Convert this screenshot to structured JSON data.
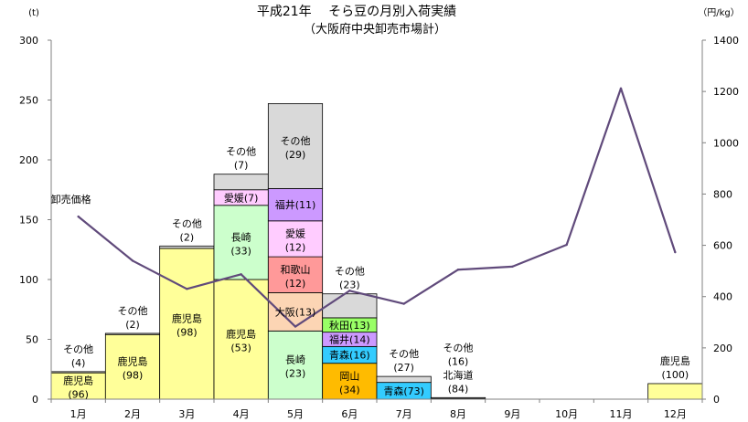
{
  "chart_data": {
    "type": "bar",
    "title": "平成21年　 そら豆の月別入荷実績",
    "subtitle": "（大阪府中央卸売市場計）",
    "left_unit": "(t)",
    "right_unit": "（円/kg）",
    "y_ticks": [
      "0",
      "50",
      "100",
      "150",
      "200",
      "250",
      "300"
    ],
    "y2_ticks": [
      "0",
      "200",
      "400",
      "600",
      "800",
      "1000",
      "1200",
      "1400"
    ],
    "ylim": [
      0,
      300
    ],
    "y2lim": [
      0,
      1400
    ],
    "categories": [
      "1月",
      "2月",
      "3月",
      "4月",
      "5月",
      "6月",
      "7月",
      "8月",
      "9月",
      "10月",
      "11月",
      "12月"
    ],
    "colors": {
      "鹿児島": "#ffff99",
      "長崎": "#ccffcc",
      "愛媛": "#ffccff",
      "大阪": "#fcd5b4",
      "和歌山": "#ff9999",
      "福井": "#cc99ff",
      "秋田": "#99ff66",
      "青森": "#33ccff",
      "岡山": "#ffbb00",
      "北海道": "#ffffff",
      "その他": "#d9d9d9",
      "price_line": "#604a7b"
    },
    "stacks": [
      {
        "month": "1月",
        "segments": [
          {
            "name": "鹿児島",
            "value": 22,
            "label": "鹿児島",
            "sub": "(96)"
          },
          {
            "name": "その他",
            "value": 1,
            "label": "",
            "sub": ""
          }
        ]
      },
      {
        "month": "2月",
        "segments": [
          {
            "name": "鹿児島",
            "value": 54,
            "label": "鹿児島",
            "sub": "(98)"
          },
          {
            "name": "その他",
            "value": 1,
            "label": "",
            "sub": ""
          }
        ]
      },
      {
        "month": "3月",
        "segments": [
          {
            "name": "鹿児島",
            "value": 126,
            "label": "鹿児島",
            "sub": "(98)"
          },
          {
            "name": "その他",
            "value": 2,
            "label": "",
            "sub": ""
          }
        ]
      },
      {
        "month": "4月",
        "segments": [
          {
            "name": "鹿児島",
            "value": 100,
            "label": "鹿児島",
            "sub": "(53)"
          },
          {
            "name": "長崎",
            "value": 62,
            "label": "長崎",
            "sub": "(33)"
          },
          {
            "name": "愛媛",
            "value": 13,
            "label": "愛媛(7)",
            "sub": ""
          },
          {
            "name": "その他",
            "value": 13,
            "label": "",
            "sub": ""
          }
        ]
      },
      {
        "month": "5月",
        "segments": [
          {
            "name": "長崎",
            "value": 57,
            "label": "長崎",
            "sub": "(23)"
          },
          {
            "name": "大阪",
            "value": 32,
            "label": "大阪(13)",
            "sub": ""
          },
          {
            "name": "和歌山",
            "value": 30,
            "label": "和歌山",
            "sub": "(12)"
          },
          {
            "name": "愛媛",
            "value": 30,
            "label": "愛媛",
            "sub": "(12)"
          },
          {
            "name": "福井",
            "value": 27,
            "label": "福井(11)",
            "sub": ""
          },
          {
            "name": "その他",
            "value": 71,
            "label": "その他",
            "sub": "(29)"
          }
        ]
      },
      {
        "month": "6月",
        "segments": [
          {
            "name": "岡山",
            "value": 30,
            "label": "岡山",
            "sub": "(34)"
          },
          {
            "name": "青森",
            "value": 14,
            "label": "青森(16)",
            "sub": ""
          },
          {
            "name": "福井",
            "value": 12,
            "label": "福井(14)",
            "sub": ""
          },
          {
            "name": "秋田",
            "value": 12,
            "label": "秋田(13)",
            "sub": ""
          },
          {
            "name": "その他",
            "value": 20,
            "label": "",
            "sub": ""
          }
        ]
      },
      {
        "month": "7月",
        "segments": [
          {
            "name": "青森",
            "value": 14,
            "label": "青森(73)",
            "sub": ""
          },
          {
            "name": "その他",
            "value": 5,
            "label": "",
            "sub": ""
          }
        ]
      },
      {
        "month": "8月",
        "segments": [
          {
            "name": "北海道",
            "value": 1,
            "label": "",
            "sub": ""
          },
          {
            "name": "その他",
            "value": 0.3,
            "label": "",
            "sub": ""
          }
        ]
      },
      {
        "month": "9月",
        "segments": []
      },
      {
        "month": "10月",
        "segments": []
      },
      {
        "month": "11月",
        "segments": []
      },
      {
        "month": "12月",
        "segments": [
          {
            "name": "鹿児島",
            "value": 13,
            "label": "",
            "sub": ""
          }
        ]
      }
    ],
    "annotations": [
      {
        "month": "1月",
        "anchor_value": 23,
        "lines": [
          "その他",
          "(4)"
        ]
      },
      {
        "month": "2月",
        "anchor_value": 55,
        "lines": [
          "その他",
          "(2)"
        ]
      },
      {
        "month": "3月",
        "anchor_value": 128,
        "lines": [
          "その他",
          "(2)"
        ]
      },
      {
        "month": "4月",
        "anchor_value": 188,
        "lines": [
          "その他",
          "(7)"
        ]
      },
      {
        "month": "6月",
        "anchor_value": 88,
        "lines": [
          "その他",
          "(23)"
        ]
      },
      {
        "month": "7月",
        "anchor_value": 19,
        "lines": [
          "その他",
          "(27)"
        ]
      },
      {
        "month": "8月",
        "anchor_value": 1.3,
        "lines": [
          "その他",
          "(16)",
          "北海道",
          "(84)"
        ]
      },
      {
        "month": "12月",
        "anchor_value": 13,
        "lines": [
          "鹿児島",
          "(100)"
        ]
      }
    ],
    "price_series": {
      "label": "卸売価格",
      "values": [
        712,
        540,
        430,
        487,
        283,
        423,
        372,
        505,
        517,
        602,
        1212,
        573
      ]
    }
  }
}
